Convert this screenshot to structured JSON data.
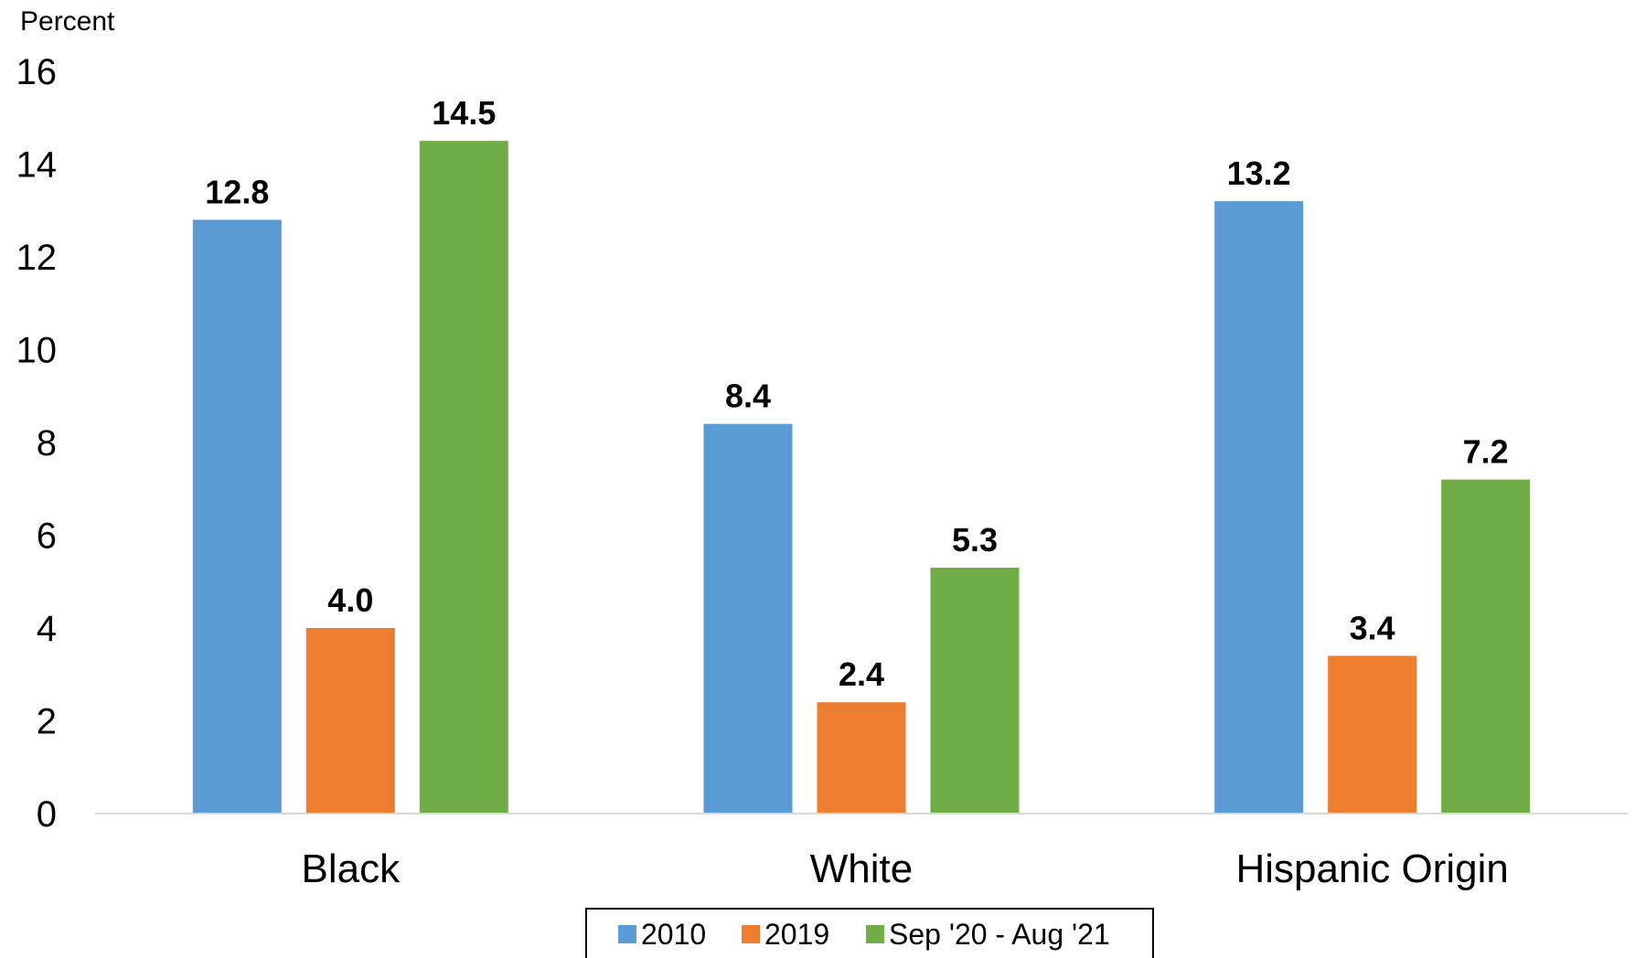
{
  "chart_data": {
    "type": "bar",
    "ylabel": "Percent",
    "ylim": [
      0,
      16
    ],
    "yticks": [
      0,
      2,
      4,
      6,
      8,
      10,
      12,
      14,
      16
    ],
    "grid": false,
    "legend_position": "bottom-center",
    "categories": [
      "Black",
      "White",
      "Hispanic Origin"
    ],
    "series": [
      {
        "name": "2010",
        "color": "#5B9BD5",
        "values": [
          12.8,
          8.4,
          13.2
        ],
        "labels": [
          "12.8",
          "8.4",
          "13.2"
        ]
      },
      {
        "name": "2019",
        "color": "#ED7D31",
        "values": [
          4.0,
          2.4,
          3.4
        ],
        "labels": [
          "4.0",
          "2.4",
          "3.4"
        ]
      },
      {
        "name": "Sep '20 - Aug '21",
        "color": "#70AD47",
        "values": [
          14.5,
          5.3,
          7.2
        ],
        "labels": [
          "14.5",
          "5.3",
          "7.2"
        ]
      }
    ]
  }
}
